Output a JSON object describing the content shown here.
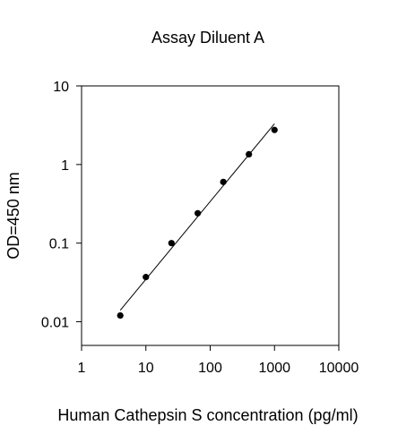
{
  "chart_data": {
    "type": "scatter",
    "title": "Assay Diluent A",
    "xlabel": "Human Cathepsin S concentration (pg/ml)",
    "ylabel": "OD=450 nm",
    "x_scale": "log",
    "y_scale": "log",
    "xlim": [
      1,
      10000
    ],
    "ylim": [
      0.005,
      10
    ],
    "x_ticks": [
      1,
      10,
      100,
      1000,
      10000
    ],
    "x_tick_labels": [
      "1",
      "10",
      "100",
      "1000",
      "10000"
    ],
    "y_ticks": [
      0.01,
      0.1,
      1,
      10
    ],
    "y_tick_labels": [
      "0.01",
      "0.1",
      "1",
      "10"
    ],
    "grid": false,
    "legend": "none",
    "series": [
      {
        "points": [
          {
            "x": 4,
            "y": 0.012
          },
          {
            "x": 10,
            "y": 0.037
          },
          {
            "x": 25,
            "y": 0.1
          },
          {
            "x": 64,
            "y": 0.24
          },
          {
            "x": 160,
            "y": 0.6
          },
          {
            "x": 400,
            "y": 1.35
          },
          {
            "x": 1000,
            "y": 2.75
          }
        ],
        "fit_line": {
          "x": [
            4,
            1000
          ],
          "y": [
            0.014,
            3.3
          ]
        },
        "color": "#000000"
      }
    ]
  }
}
